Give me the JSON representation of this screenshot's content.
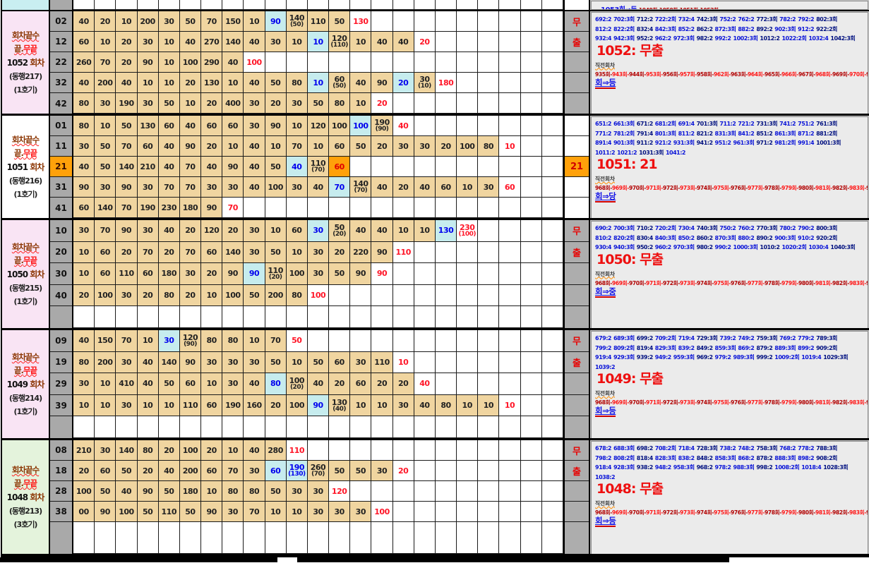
{
  "top_strip": {
    "tail": "1053회⇒등",
    "fragment": "-1049회-1050회-1051회-1052회-"
  },
  "blue_counts": [
    ":2",
    ":3회",
    ":2",
    ":2회",
    ":4",
    ":3회",
    ":2",
    ":2",
    ":3회",
    ":2"
  ],
  "sections": [
    {
      "round": "1052",
      "label": {
        "bg": "labp",
        "l1": "회차끝수",
        "l2a": "끝.",
        "l2b": "무끝",
        "num": "1052",
        "suffix": " 회차",
        "org": "(동행217)",
        "machine": "(1호기)"
      },
      "rows": [
        {
          "label": "02",
          "cells": [
            "40",
            "20",
            "10",
            "200",
            "30",
            "50",
            "70",
            "150",
            "10",
            {
              "v": "90",
              "s": "cyan"
            },
            {
              "v": "140",
              "sub": "(50)"
            },
            "110",
            "50",
            {
              "v": "130",
              "s": "red"
            }
          ]
        },
        {
          "label": "12",
          "cells": [
            "60",
            "10",
            "20",
            "30",
            "10",
            "40",
            "270",
            "140",
            "40",
            "30",
            "10",
            {
              "v": "10",
              "s": "cyan"
            },
            {
              "v": "120",
              "sub": "(110)"
            },
            "10",
            "40",
            "40",
            {
              "v": "20",
              "s": "red"
            }
          ]
        },
        {
          "label": "22",
          "cells": [
            "260",
            "70",
            "20",
            "90",
            "10",
            "100",
            "290",
            "40",
            {
              "v": "100",
              "s": "red"
            }
          ]
        },
        {
          "label": "32",
          "cells": [
            "40",
            "200",
            "40",
            "10",
            "10",
            "20",
            "130",
            "10",
            "40",
            "50",
            "80",
            {
              "v": "10",
              "s": "cyan"
            },
            {
              "v": "60",
              "sub": "(50)"
            },
            "40",
            "90",
            {
              "v": "20",
              "s": "cyan"
            },
            {
              "v": "30",
              "sub": "(10)"
            },
            {
              "v": "180",
              "s": "red"
            }
          ]
        },
        {
          "label": "42",
          "cells": [
            "80",
            "30",
            "190",
            "30",
            "50",
            "10",
            "20",
            "400",
            "30",
            "20",
            "30",
            "50",
            "80",
            "10",
            {
              "v": "20",
              "s": "red"
            }
          ]
        }
      ],
      "badge": {
        "type": "muchul",
        "top": "무",
        "bottom": "출"
      },
      "panel": {
        "blue": {
          "start": 692,
          "end": 1042,
          "step": 10
        },
        "title": "1052: 무출",
        "red": {
          "lead": "직전회차",
          "prefix": [
            935,
            943,
            944,
            953,
            956,
            957,
            958,
            962
          ],
          "start": 963,
          "end": 1051
        },
        "tail": "1052회⇒등"
      }
    },
    {
      "round": "1051",
      "label": {
        "bg": "labw",
        "l1": "회차끝수",
        "l2a": "끝.",
        "l2b": "무끝",
        "num": "1051",
        "suffix": " 회차",
        "org": "(동행216)",
        "machine": "(1호기)"
      },
      "rows": [
        {
          "label": "01",
          "cells": [
            "80",
            "10",
            "50",
            "130",
            "60",
            "40",
            "60",
            "60",
            "30",
            "90",
            "10",
            "120",
            "100",
            {
              "v": "100",
              "s": "cyan"
            },
            {
              "v": "190",
              "sub": "(90)"
            },
            {
              "v": "40",
              "s": "red"
            }
          ]
        },
        {
          "label": "11",
          "cells": [
            "30",
            "50",
            "70",
            "60",
            "40",
            "90",
            "20",
            "10",
            "40",
            "10",
            "70",
            "10",
            "60",
            "50",
            "20",
            "30",
            "30",
            "20",
            "100",
            "80",
            {
              "v": "10",
              "s": "red"
            }
          ]
        },
        {
          "label": "21",
          "labelStyle": "orange",
          "cells": [
            "40",
            "50",
            "140",
            "210",
            "40",
            "70",
            "40",
            "90",
            "40",
            "50",
            {
              "v": "40",
              "s": "cyan"
            },
            {
              "v": "110",
              "sub": "(70)"
            },
            {
              "v": "60",
              "s": "orange"
            }
          ]
        },
        {
          "label": "31",
          "cells": [
            "90",
            "30",
            "90",
            "30",
            "70",
            "70",
            "30",
            "30",
            "40",
            "100",
            "30",
            "40",
            {
              "v": "70",
              "s": "cyan"
            },
            {
              "v": "140",
              "sub": "(70)"
            },
            "40",
            "20",
            "40",
            "60",
            "10",
            "30",
            {
              "v": "60",
              "s": "red"
            }
          ]
        },
        {
          "label": "41",
          "cells": [
            "60",
            "140",
            "70",
            "190",
            "230",
            "180",
            "90",
            {
              "v": "70",
              "s": "red"
            }
          ]
        }
      ],
      "badge": {
        "type": "num",
        "value": "21",
        "rowIndex": 2
      },
      "panel": {
        "blue": {
          "start": 651,
          "end": 1041,
          "step": 10
        },
        "title": "1051: 21",
        "red": {
          "lead": "직전회차",
          "prefix": [],
          "start": 968,
          "end": 1050
        },
        "tail": "1051회⇒당"
      }
    },
    {
      "round": "1050",
      "label": {
        "bg": "labp",
        "l1": "회차끝수",
        "l2a": "끝.",
        "l2b": "무끝",
        "num": "1050",
        "suffix": " 회차",
        "org": "(동행215)",
        "machine": "(1호기)"
      },
      "rows": [
        {
          "label": "10",
          "cells": [
            "30",
            "70",
            "90",
            "30",
            "40",
            "20",
            "120",
            "20",
            "30",
            "10",
            "60",
            {
              "v": "30",
              "s": "cyan"
            },
            {
              "v": "50",
              "sub": "(20)"
            },
            "40",
            "40",
            "10",
            "10",
            {
              "v": "130",
              "s": "cyan"
            },
            {
              "v": "230",
              "sub": "(100)",
              "s": "red"
            }
          ]
        },
        {
          "label": "20",
          "cells": [
            "10",
            "60",
            "20",
            "70",
            "20",
            "70",
            "60",
            "140",
            "30",
            "50",
            "10",
            "30",
            "20",
            "220",
            "90",
            {
              "v": "110",
              "s": "red"
            }
          ]
        },
        {
          "label": "30",
          "cells": [
            "10",
            "60",
            "110",
            "60",
            "180",
            "30",
            "20",
            "90",
            {
              "v": "90",
              "s": "cyan"
            },
            {
              "v": "110",
              "sub": "(20)"
            },
            "100",
            "30",
            "50",
            "90",
            {
              "v": "90",
              "s": "red"
            }
          ]
        },
        {
          "label": "40",
          "cells": [
            "20",
            "100",
            "30",
            "20",
            "80",
            "20",
            "10",
            "100",
            "50",
            "200",
            "80",
            {
              "v": "100",
              "s": "red"
            }
          ]
        },
        {
          "label": "",
          "cells": []
        }
      ],
      "badge": {
        "type": "muchul",
        "top": "무",
        "bottom": "출"
      },
      "panel": {
        "blue": {
          "start": 690,
          "end": 1040,
          "step": 10
        },
        "title": "1050: 무출",
        "red": {
          "lead": "직전회차",
          "prefix": [],
          "start": 968,
          "end": 1049
        },
        "tail": "1050회⇒중"
      }
    },
    {
      "round": "1049",
      "label": {
        "bg": "labp",
        "l1": "회차끝수",
        "l2a": "끝.",
        "l2b": "무끝",
        "num": "1049",
        "suffix": " 회차",
        "org": "(동행214)",
        "machine": "(1호기)"
      },
      "rows": [
        {
          "label": "09",
          "cells": [
            "40",
            "150",
            "70",
            "10",
            {
              "v": "30",
              "s": "cyan"
            },
            {
              "v": "120",
              "sub": "(90)"
            },
            "80",
            "80",
            "10",
            "70",
            {
              "v": "50",
              "s": "red"
            }
          ]
        },
        {
          "label": "19",
          "cells": [
            "80",
            "200",
            "30",
            "40",
            "140",
            "90",
            "30",
            "30",
            "30",
            "50",
            "10",
            "50",
            "60",
            "30",
            "110",
            {
              "v": "10",
              "s": "red"
            }
          ]
        },
        {
          "label": "29",
          "cells": [
            "30",
            "10",
            "410",
            "40",
            "50",
            "60",
            "10",
            "30",
            "40",
            {
              "v": "80",
              "s": "cyan"
            },
            {
              "v": "100",
              "sub": "(20)"
            },
            "40",
            "20",
            "60",
            "20",
            "20",
            {
              "v": "40",
              "s": "red"
            }
          ]
        },
        {
          "label": "39",
          "cells": [
            "10",
            "10",
            "30",
            "10",
            "10",
            "110",
            "60",
            "190",
            "160",
            "20",
            "100",
            {
              "v": "90",
              "s": "cyan"
            },
            {
              "v": "130",
              "sub": "(40)"
            },
            "10",
            "10",
            "30",
            "40",
            "80",
            "10",
            "10",
            {
              "v": "10",
              "s": "red"
            }
          ]
        },
        {
          "label": "",
          "cells": []
        }
      ],
      "badge": {
        "type": "muchul",
        "top": "무",
        "bottom": "출"
      },
      "panel": {
        "blue": {
          "start": 679,
          "end": 1039,
          "step": 10
        },
        "title": "1049: 무출",
        "red": {
          "lead": "직전회차",
          "prefix": [],
          "start": 968,
          "end": 1048
        },
        "tail": "1049회⇒등"
      }
    },
    {
      "round": "1048",
      "label": {
        "bg": "labg",
        "l1": "회차끝수",
        "l2a": "끝.",
        "l2b": "무끝",
        "num": "1048",
        "suffix": " 회차",
        "org": "(동행213)",
        "machine": "(3호기)"
      },
      "rows": [
        {
          "label": "08",
          "cells": [
            "210",
            "30",
            "140",
            "80",
            "20",
            "100",
            "20",
            "10",
            "40",
            "280",
            {
              "v": "110",
              "s": "red"
            }
          ]
        },
        {
          "label": "18",
          "cells": [
            "20",
            "60",
            "50",
            "20",
            "40",
            "200",
            "60",
            "70",
            "30",
            {
              "v": "60",
              "s": "cyan"
            },
            {
              "v": "190",
              "sub": "(130)",
              "s": "cyan"
            },
            {
              "v": "260",
              "sub": "(70)"
            },
            "50",
            "50",
            "30",
            {
              "v": "20",
              "s": "red"
            }
          ]
        },
        {
          "label": "28",
          "cells": [
            "100",
            "50",
            "40",
            "90",
            "50",
            "180",
            "10",
            "80",
            "80",
            "50",
            "30",
            "30",
            {
              "v": "120",
              "s": "red"
            }
          ]
        },
        {
          "label": "38",
          "cells": [
            "00",
            "90",
            "100",
            "50",
            "110",
            "50",
            "90",
            "30",
            "70",
            "10",
            "10",
            "30",
            "30",
            "30",
            {
              "v": "100",
              "s": "red"
            }
          ]
        },
        {
          "label": "",
          "cells": []
        }
      ],
      "badge": {
        "type": "muchul",
        "top": "무",
        "bottom": "출"
      },
      "panel": {
        "blue": {
          "start": 678,
          "end": 1038,
          "step": 10
        },
        "title": "1048: 무출",
        "red": {
          "lead": "직전회차",
          "prefix": [],
          "start": 968,
          "end": 1047
        },
        "tail": "1048회⇒등"
      }
    }
  ]
}
